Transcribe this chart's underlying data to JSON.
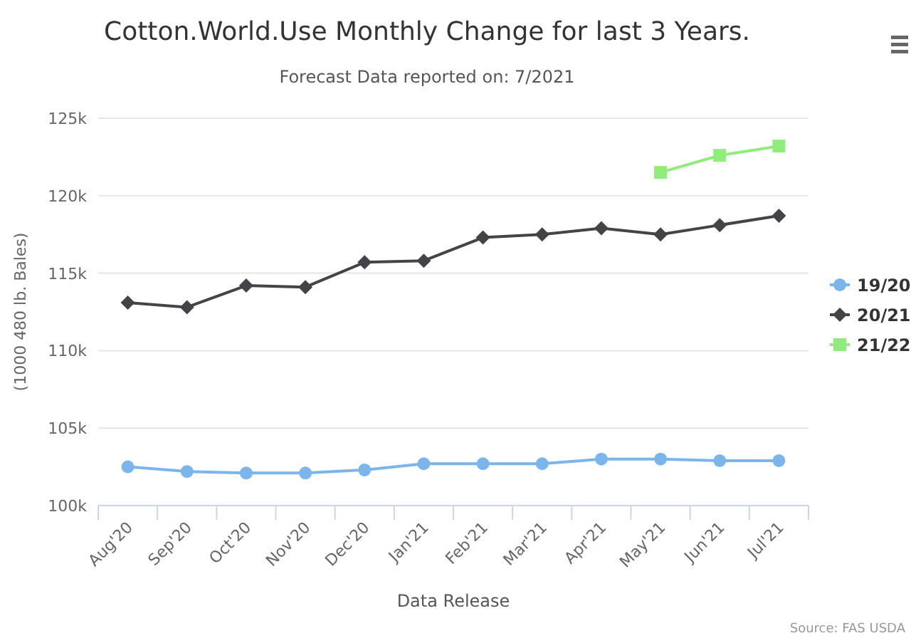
{
  "chart_data": {
    "type": "line",
    "title": "Cotton.World.Use Monthly Change for last 3 Years.",
    "subtitle": "Forecast Data reported on: 7/2021",
    "xlabel": "Data Release",
    "ylabel": "(1000 480 lb. Bales)",
    "annotations": [
      "Source: FAS USDA"
    ],
    "categories": [
      "Aug'20",
      "Sep'20",
      "Oct'20",
      "Nov'20",
      "Dec'20",
      "Jan'21",
      "Feb'21",
      "Mar'21",
      "Apr'21",
      "May'21",
      "Jun'21",
      "Jul'21"
    ],
    "ylim": [
      100000,
      125000
    ],
    "yticks": [
      {
        "value": 100000,
        "label": "100k"
      },
      {
        "value": 105000,
        "label": "105k"
      },
      {
        "value": 110000,
        "label": "110k"
      },
      {
        "value": 115000,
        "label": "115k"
      },
      {
        "value": 120000,
        "label": "120k"
      },
      {
        "value": 125000,
        "label": "125k"
      }
    ],
    "grid": "y",
    "legend": "right",
    "series": [
      {
        "name": "19/20",
        "color": "#7cb5ec",
        "marker": "circle",
        "values": [
          102500,
          102200,
          102100,
          102100,
          102300,
          102700,
          102700,
          102700,
          103000,
          103000,
          102900,
          102900
        ]
      },
      {
        "name": "20/21",
        "color": "#434348",
        "marker": "diamond",
        "values": [
          113100,
          112800,
          114200,
          114100,
          115700,
          115800,
          117300,
          117500,
          117900,
          117500,
          118100,
          118700
        ]
      },
      {
        "name": "21/22",
        "color": "#90ed7d",
        "marker": "square",
        "values": [
          null,
          null,
          null,
          null,
          null,
          null,
          null,
          null,
          null,
          121500,
          122600,
          123200
        ]
      }
    ]
  }
}
